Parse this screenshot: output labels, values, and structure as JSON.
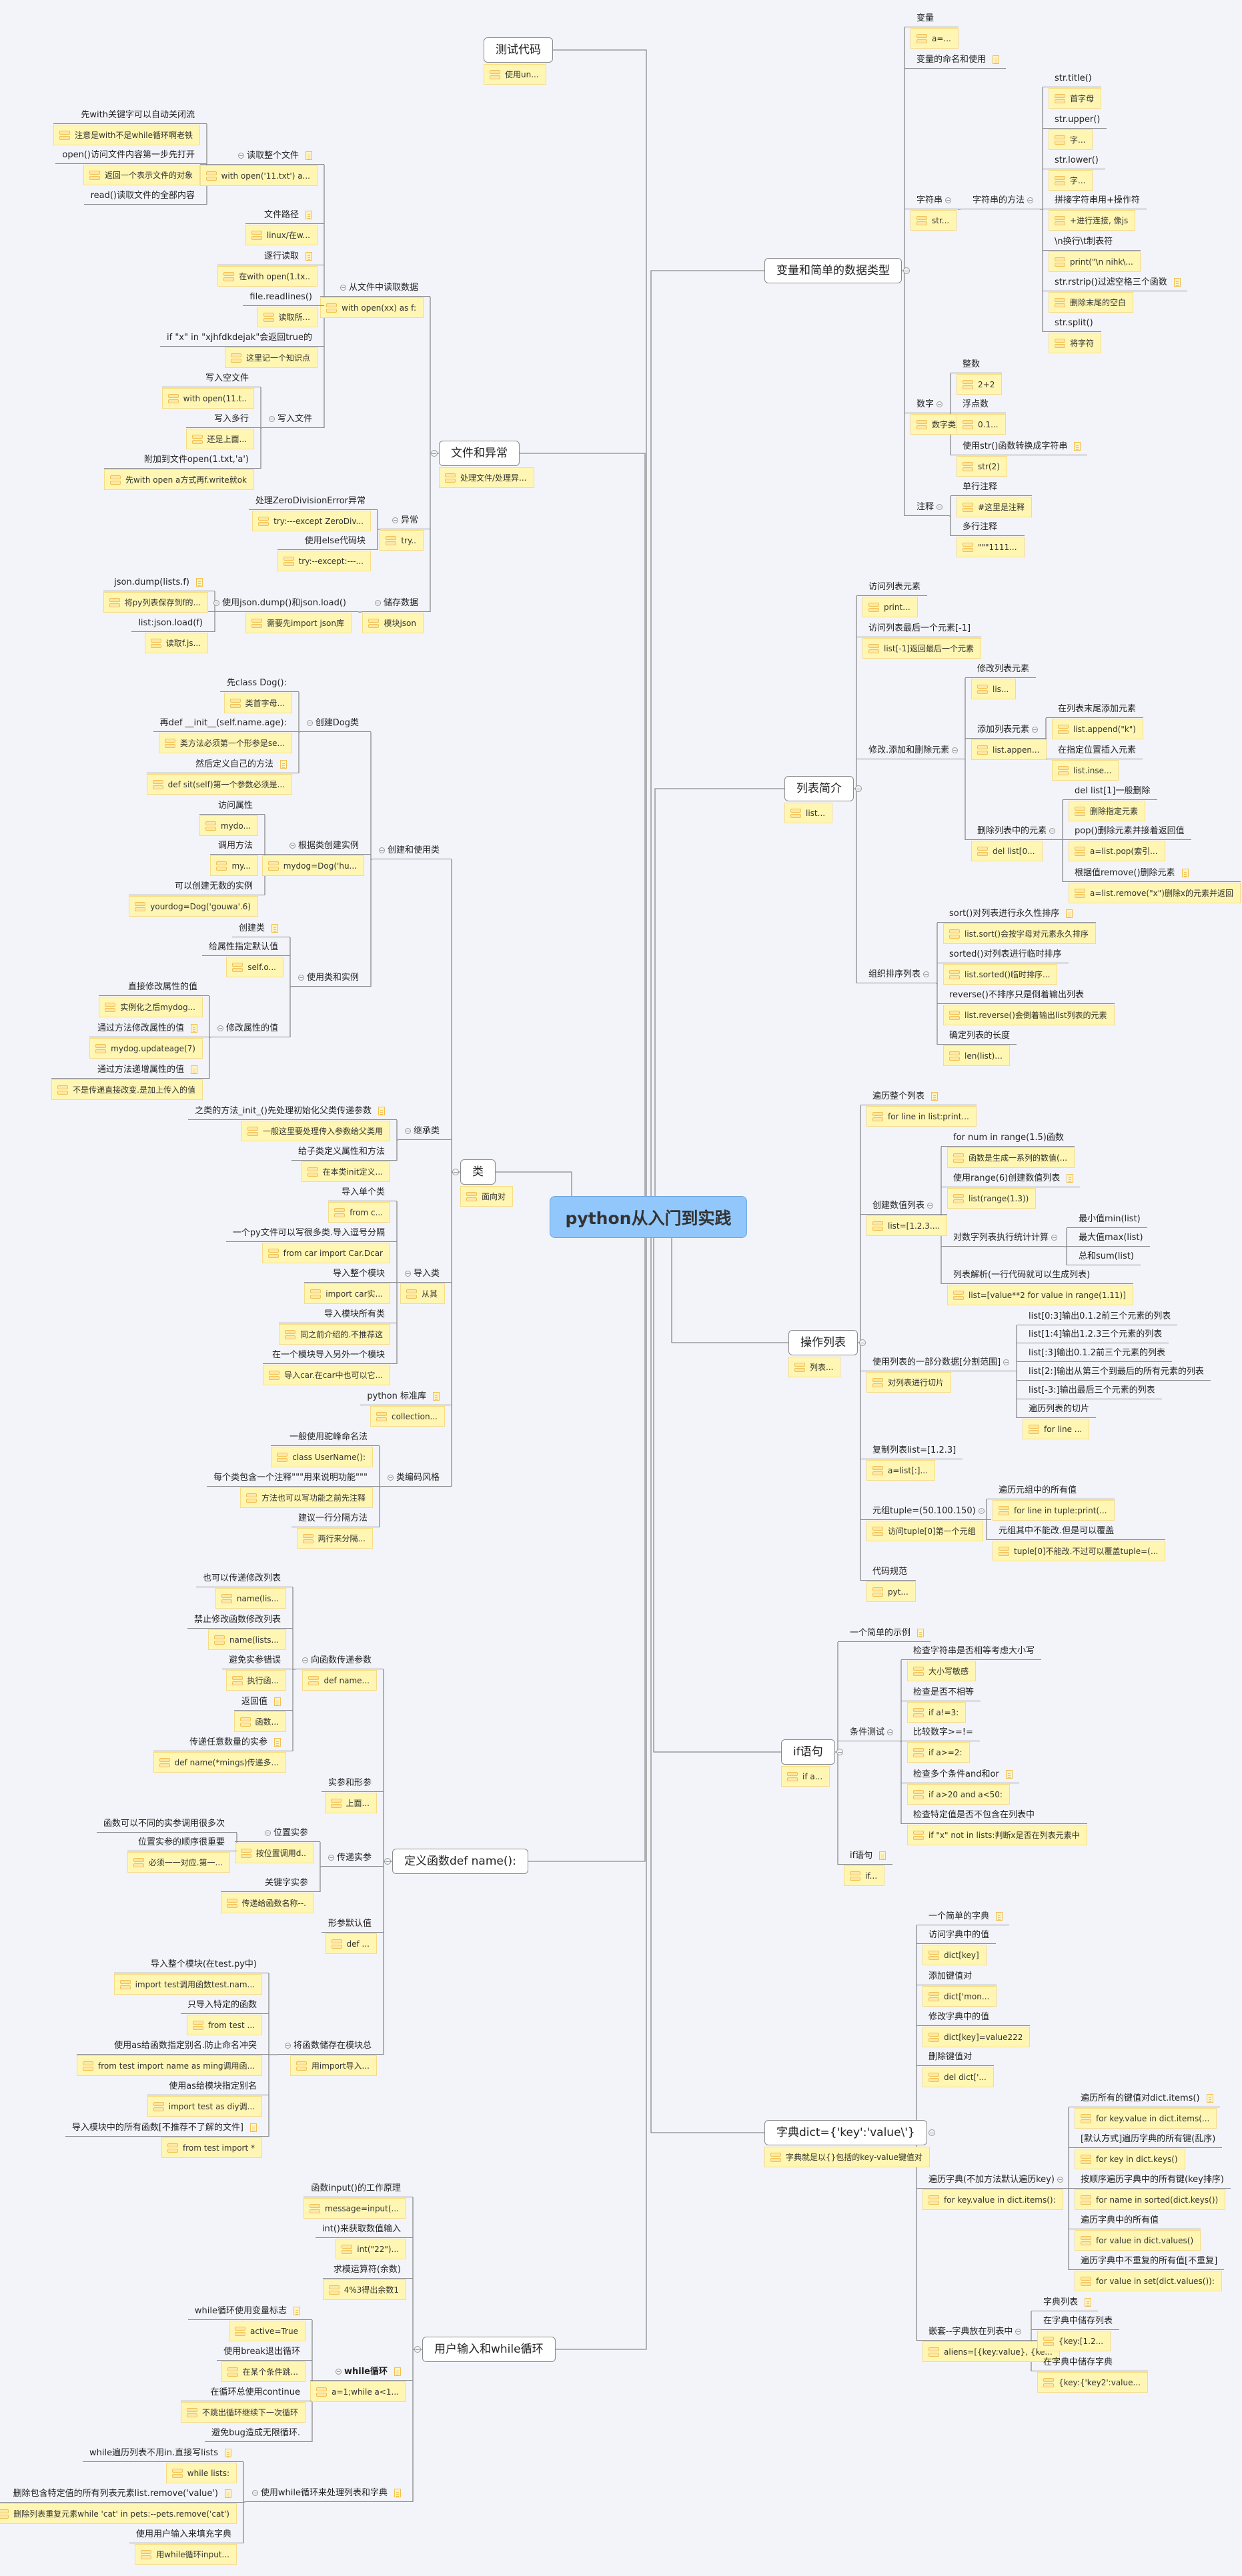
{
  "center": {
    "title": "python从入门到实践",
    "color": "#92c7fb"
  },
  "colors": {
    "note_fill": "#fff6b3",
    "note_border": "#f7dc86",
    "line": "#8a8a8a",
    "background": "#f3f4f9"
  },
  "branches": [
    {
      "label": "测试代码",
      "note": "使用un...",
      "side": "L",
      "children": []
    },
    {
      "label": "文件和异常",
      "note": "处理文件/处理异...",
      "side": "L",
      "children": [
        {
          "label": "从文件中读取数据",
          "note": "with open(xx) as f:",
          "children": [
            {
              "label": "读取整个文件",
              "note": "with open('11.txt') a...",
              "doc": true,
              "children": [
                {
                  "label": "先with关键字可以自动关闭流",
                  "note": "注意是with不是while循环啊老铁"
                },
                {
                  "label": "open()访问文件内容第一步先打开",
                  "note": "返回一个表示文件的对象"
                },
                {
                  "label": "read()读取文件的全部内容"
                }
              ]
            },
            {
              "label": "文件路径",
              "note": "linux/在w...",
              "doc": true
            },
            {
              "label": "逐行读取",
              "note": "在with open(1.tx..",
              "doc": true
            },
            {
              "label": "file.readlines()",
              "note": "读取所..."
            },
            {
              "label": "if \"x\" in \"xjhfdkdejak\"会返回true的",
              "note": "这里记一个知识点"
            },
            {
              "label": "写入文件",
              "children": [
                {
                  "label": "写入空文件",
                  "note": "with open(11.t.."
                },
                {
                  "label": "写入多行",
                  "note": "还是上面..."
                },
                {
                  "label": "附加到文件open(1.txt,'a')",
                  "note": "先with open a方式再f.write就ok"
                }
              ]
            }
          ]
        },
        {
          "label": "异常",
          "note": "try..",
          "children": [
            {
              "label": "处理ZeroDivisionError异常",
              "note": "try:---except ZeroDiv..."
            },
            {
              "label": "使用else代码块",
              "note": "try:--except:---..."
            }
          ]
        },
        {
          "label": "储存数据",
          "note": "模块json",
          "children": [
            {
              "label": "使用json.dump()和json.load()",
              "note": "需要先import json库",
              "children": [
                {
                  "label": "json.dump(lists.f)",
                  "note": "将py列表保存到f的...",
                  "doc": true
                },
                {
                  "label": "list:json.load(f)",
                  "note": "读取f.js..."
                }
              ]
            }
          ]
        }
      ]
    },
    {
      "label": "类",
      "note": "面向对",
      "side": "L",
      "children": [
        {
          "label": "创建和使用类",
          "children": [
            {
              "label": "创建Dog类",
              "children": [
                {
                  "label": "先class Dog():",
                  "note": "类首字母..."
                },
                {
                  "label": "再def __init__(self.name.age):",
                  "note": "类方法必须第一个形参是se..."
                },
                {
                  "label": "然后定义自己的方法",
                  "note": "def sit(self)第一个参数必须是...",
                  "doc": true
                }
              ]
            },
            {
              "label": "根据类创建实例",
              "note": "mydog=Dog('hu...",
              "children": [
                {
                  "label": "访问属性",
                  "note": "mydo..."
                },
                {
                  "label": "调用方法",
                  "note": "my..."
                },
                {
                  "label": "可以创建无数的实例",
                  "note": "yourdog=Dog('gouwa'.6)"
                }
              ]
            },
            {
              "label": "使用类和实例",
              "children": [
                {
                  "label": "创建类",
                  "doc": true
                },
                {
                  "label": "给属性指定默认值",
                  "note": "self.o..."
                },
                {
                  "label": "修改属性的值",
                  "children": [
                    {
                      "label": "直接修改属性的值",
                      "note": "实例化之后mydog..."
                    },
                    {
                      "label": "通过方法修改属性的值",
                      "note": "mydog.updateage(7)",
                      "doc": true
                    },
                    {
                      "label": "通过方法递增属性的值",
                      "note": "不是传递直接改变.是加上传入的值",
                      "doc": true
                    }
                  ]
                }
              ]
            }
          ]
        },
        {
          "label": "继承类",
          "children": [
            {
              "label": "之类的方法_init_()先处理初始化父类传递参数",
              "note": "一般这里要处理传入参数给父类用",
              "doc": true
            },
            {
              "label": "给子类定义属性和方法",
              "note": "在本类init定义..."
            }
          ]
        },
        {
          "label": "导入类",
          "note": "从其",
          "children": [
            {
              "label": "导入单个类",
              "note": "from c..."
            },
            {
              "label": "一个py文件可以写很多类.导入逗号分隔",
              "note": "from car import Car.Dcar"
            },
            {
              "label": "导入整个模块",
              "note": "import car实..."
            },
            {
              "label": "导入模块所有类",
              "note": "同之前介绍的.不推荐这"
            },
            {
              "label": "在一个模块导入另外一个模块",
              "note": "导入car.在car中也可以它..."
            }
          ]
        },
        {
          "label": "python 标准库",
          "note": "collection...",
          "doc": true
        },
        {
          "label": "类编码风格",
          "children": [
            {
              "label": "一般使用驼峰命名法",
              "note": "class UserName():"
            },
            {
              "label": "每个类包含一个注释\"\"\"用来说明功能\"\"\"",
              "note": "方法也可以写功能之前先注释"
            },
            {
              "label": "建议一行分隔方法",
              "note": "两行来分隔..."
            }
          ]
        }
      ]
    },
    {
      "label": "定义函数def name():",
      "side": "L",
      "children": [
        {
          "label": "向函数传递参数",
          "note": "def name...",
          "children": [
            {
              "label": "也可以传递修改列表",
              "note": "name(lis..."
            },
            {
              "label": "禁止修改函数修改列表",
              "note": "name(lists..."
            },
            {
              "label": "避免实参错误",
              "note": "执行函..."
            },
            {
              "label": "返回值",
              "note": "函数...",
              "doc": true
            },
            {
              "label": "传递任意数量的实参",
              "note": "def name(*mings)传递多...",
              "doc": true
            }
          ]
        },
        {
          "label": "实参和形参",
          "note": "上面..."
        },
        {
          "label": "传递实参",
          "children": [
            {
              "label": "位置实参",
              "note": "按位置调用d..",
              "children": [
                {
                  "label": "函数可以不同的实参调用很多次"
                },
                {
                  "label": "位置实参的顺序很重要",
                  "note": "必须一一对应.第一..."
                }
              ]
            },
            {
              "label": "关键字实参",
              "note": "传递给函数名称--."
            }
          ]
        },
        {
          "label": "形参默认值",
          "note": "def ..."
        },
        {
          "label": "将函数储存在模块总",
          "note": "用import导入...",
          "children": [
            {
              "label": "导入整个模块(在test.py中)",
              "note": "import test调用函数test.nam..."
            },
            {
              "label": "只导入特定的函数",
              "note": "from test ..."
            },
            {
              "label": "使用as给函数指定别名.防止命名冲突",
              "note": "from test import name as ming调用函..."
            },
            {
              "label": "使用as给模块指定别名",
              "note": "import test as diy调..."
            },
            {
              "label": "导入模块中的所有函数[不推荐不了解的文件]",
              "note": "from test import *",
              "doc": true
            }
          ]
        }
      ]
    },
    {
      "label": "用户输入和while循环",
      "side": "L",
      "children": [
        {
          "label": "函数input()的工作原理",
          "note": "message=input(..."
        },
        {
          "label": "int()来获取数值输入",
          "note": "int(\"22\")..."
        },
        {
          "label": "求模运算符(余数)",
          "note": "4%3得出余数1"
        },
        {
          "label": "while循环",
          "note": "a=1;while a<1...",
          "doc": true,
          "bold": true,
          "children": [
            {
              "label": "while循环使用变量标志",
              "note": "active=True",
              "doc": true
            },
            {
              "label": "使用break退出循环",
              "note": "在某个条件跳..."
            },
            {
              "label": "在循环总使用continue",
              "note": "不跳出循环继续下一次循环"
            },
            {
              "label": "避免bug造成无限循环."
            }
          ]
        },
        {
          "label": "使用while循环来处理列表和字典",
          "doc": true,
          "children": [
            {
              "label": "while遍历列表不用in.直接写lists",
              "note": "while lists:",
              "doc": true
            },
            {
              "label": "删除包含特定值的所有列表元素list.remove('value')",
              "note": "删除列表重复元素while 'cat' in pets:--pets.remove('cat')",
              "doc": true
            },
            {
              "label": "使用用户输入来填充字典",
              "note": "用while循环input..."
            }
          ]
        }
      ]
    },
    {
      "label": "变量和简单的数据类型",
      "side": "R",
      "children": [
        {
          "label": "变量",
          "note": "a=..."
        },
        {
          "label": "变量的命名和使用",
          "doc": true
        },
        {
          "label": "字符串",
          "note": "str...",
          "children": [
            {
              "label": "字符串的方法",
              "children": [
                {
                  "label": "str.title()",
                  "note": "首字母"
                },
                {
                  "label": "str.upper()",
                  "note": "字..."
                },
                {
                  "label": "str.lower()",
                  "note": "字..."
                },
                {
                  "label": "拼接字符串用+操作符",
                  "note": "+进行连接, 像js"
                },
                {
                  "label": "\\n换行\\t制表符",
                  "note": "print(\"\\n nihk\\..."
                },
                {
                  "label": "str.rstrip()过滤空格三个函数",
                  "note": "删除末尾的空白",
                  "doc": true
                },
                {
                  "label": "str.split()",
                  "note": "将字符"
                }
              ]
            }
          ]
        },
        {
          "label": "数字",
          "note": "数字类型",
          "children": [
            {
              "label": "整数",
              "note": "2+2"
            },
            {
              "label": "浮点数",
              "note": "0.1..."
            },
            {
              "label": "使用str()函数转换成字符串",
              "note": "str(2)",
              "doc": true
            }
          ]
        },
        {
          "label": "注释",
          "children": [
            {
              "label": "单行注释",
              "note": "#这里是注释"
            },
            {
              "label": "多行注释",
              "note": "\"\"\"1111..."
            }
          ]
        }
      ]
    },
    {
      "label": "列表简介",
      "note": "list...",
      "side": "R",
      "children": [
        {
          "label": "访问列表元素",
          "note": "print..."
        },
        {
          "label": "访问列表最后一个元素[-1]",
          "note": "list[-1]返回最后一个元素"
        },
        {
          "label": "修改.添加和删除元素",
          "children": [
            {
              "label": "修改列表元素",
              "note": "lis..."
            },
            {
              "label": "添加列表元素",
              "note": "list.appen...",
              "children": [
                {
                  "label": "在列表末尾添加元素",
                  "note": "list.append(\"k\")"
                },
                {
                  "label": "在指定位置插入元素",
                  "note": "list.inse..."
                }
              ]
            },
            {
              "label": "删除列表中的元素",
              "note": "del list[0...",
              "children": [
                {
                  "label": "del list[1]一般删除",
                  "note": "删除指定元素"
                },
                {
                  "label": "pop()删除元素并接着返回值",
                  "note": "a=list.pop(索引..."
                },
                {
                  "label": "根据值remove()删除元素",
                  "note": "a=list.remove(\"x\")删除x的元素并返回",
                  "doc": true
                }
              ]
            }
          ]
        },
        {
          "label": "组织排序列表",
          "children": [
            {
              "label": "sort()对列表进行永久性排序",
              "note": "list.sort()会按字母对元素永久排序",
              "doc": true
            },
            {
              "label": "sorted()对列表进行临时排序",
              "note": "list.sorted()临时排序..."
            },
            {
              "label": "reverse()不排序只是倒着输出列表",
              "note": "list.reverse()会倒着输出list列表的元素"
            },
            {
              "label": "确定列表的长度",
              "note": "len(list)..."
            }
          ]
        }
      ]
    },
    {
      "label": "操作列表",
      "note": "列表...",
      "side": "R",
      "children": [
        {
          "label": "遍历整个列表",
          "note": "for line in list:print...",
          "doc": true
        },
        {
          "label": "创建数值列表",
          "note": "list=[1.2.3....",
          "children": [
            {
              "label": "for num in range(1.5)函数",
              "note": "函数是生成一系列的数值(..."
            },
            {
              "label": "使用range(6)创建数值列表",
              "note": "list(range(1.3))",
              "doc": true
            },
            {
              "label": "对数字列表执行统计计算",
              "children": [
                {
                  "label": "最小值min(list)"
                },
                {
                  "label": "最大值max(list)"
                },
                {
                  "label": "总和sum(list)"
                }
              ]
            },
            {
              "label": "列表解析(一行代码就可以生成列表)",
              "note": "list=[value**2 for value in range(1.11)]"
            }
          ]
        },
        {
          "label": "使用列表的一部分数据[分割范围]",
          "note": "对列表进行切片",
          "children": [
            {
              "label": "list[0:3]输出0.1.2前三个元素的列表"
            },
            {
              "label": "list[1:4]输出1.2.3三个元素的列表"
            },
            {
              "label": "list[:3]输出0.1.2前三个元素的列表"
            },
            {
              "label": "list[2:]输出从第三个到最后的所有元素的列表"
            },
            {
              "label": "list[-3:]输出最后三个元素的列表"
            },
            {
              "label": "遍历列表的切片",
              "note": "for line ..."
            }
          ]
        },
        {
          "label": "复制列表list=[1.2.3]",
          "note": "a=list[:]..."
        },
        {
          "label": "元组tuple=(50.100.150)",
          "note": "访问tuple[0]第一个元组",
          "children": [
            {
              "label": "遍历元组中的所有值",
              "note": "for line in tuple:print(..."
            },
            {
              "label": "元组其中不能改.但是可以覆盖",
              "note": "tuple[0]不能改.不过可以覆盖tuple=(..."
            }
          ]
        },
        {
          "label": "代码规范",
          "note": "pyt..."
        }
      ]
    },
    {
      "label": "if语句",
      "note": "if a...",
      "side": "R",
      "children": [
        {
          "label": "一个简单的示例",
          "doc": true
        },
        {
          "label": "条件测试",
          "children": [
            {
              "label": "检查字符串是否相等考虑大小写",
              "note": "大小写敏感"
            },
            {
              "label": "检查是否不相等",
              "note": "if a!=3:"
            },
            {
              "label": "比较数字>=!=",
              "note": "if a>=2:"
            },
            {
              "label": "检查多个条件and和or",
              "note": "if a>20 and a<50:",
              "doc": true
            },
            {
              "label": "检查特定值是否不包含在列表中",
              "note": "if \"x\" not in lists:判断x是否在列表元素中"
            }
          ]
        },
        {
          "label": "if语句",
          "note": "if...",
          "doc": true
        }
      ]
    },
    {
      "label": "字典dict={'key':'value\\'}",
      "note": "字典就是以{}包括的key-value键值对",
      "side": "R",
      "children": [
        {
          "label": "一个简单的字典",
          "doc": true
        },
        {
          "label": "访问字典中的值",
          "note": "dict[key]"
        },
        {
          "label": "添加键值对",
          "note": "dict['mon..."
        },
        {
          "label": "修改字典中的值",
          "note": "dict[key]=value222"
        },
        {
          "label": "删除键值对",
          "note": "del dict['..."
        },
        {
          "label": "遍历字典(不加方法默认遍历key)",
          "note": "for key.value in dict.items():",
          "children": [
            {
              "label": "遍历所有的键值对dict.items()",
              "note": "for key.value in dict.items(...",
              "doc": true
            },
            {
              "label": "[默认方式]遍历字典的所有键(乱序)",
              "note": "for key in dict.keys()"
            },
            {
              "label": "按顺序遍历字典中的所有键(key排序)",
              "note": "for name in sorted(dict.keys())"
            },
            {
              "label": "遍历字典中的所有值",
              "note": "for value in dict.values()"
            },
            {
              "label": "遍历字典中不重复的所有值[不重复]",
              "note": "for value in set(dict.values()):"
            }
          ]
        },
        {
          "label": "嵌套--字典放在列表中",
          "note": "aliens=[{key:value}, {ke...",
          "children": [
            {
              "label": "字典列表",
              "doc": true
            },
            {
              "label": "在字典中储存列表",
              "note": "{key:[1.2..."
            },
            {
              "label": "在字典中储存字典",
              "note": "{key:{'key2':value..."
            }
          ]
        }
      ]
    }
  ]
}
